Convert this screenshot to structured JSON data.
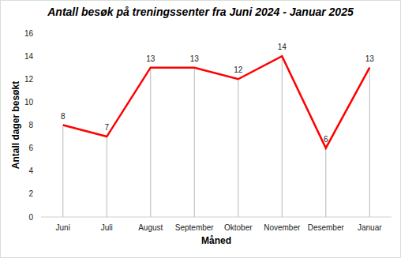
{
  "chart_data": {
    "type": "line",
    "title": "Antall besøk på treningssenter fra Juni 2024 - Januar 2025",
    "x_label": "Måned",
    "y_label": "Antall dager besøkt",
    "categories": [
      "Juni",
      "Juli",
      "August",
      "September",
      "Oktober",
      "November",
      "Desember",
      "Januar"
    ],
    "values": [
      8,
      7,
      13,
      13,
      12,
      14,
      6,
      13
    ],
    "color": "#ff0000",
    "ylim": [
      0,
      16
    ],
    "yticks": [
      0,
      2,
      4,
      6,
      8,
      10,
      12,
      14,
      16
    ],
    "grid": false,
    "data_labels": true
  }
}
